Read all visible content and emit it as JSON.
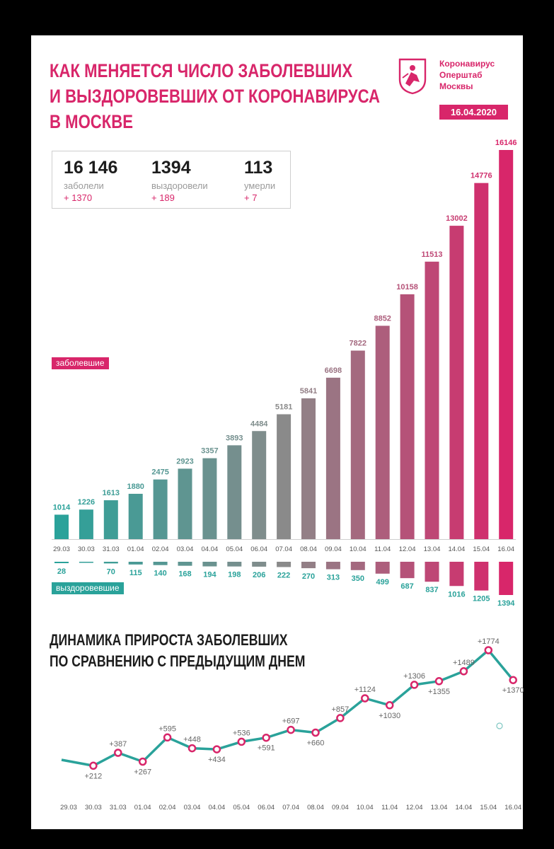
{
  "header": {
    "title_lines": [
      "КАК МЕНЯЕТСЯ ЧИСЛО ЗАБОЛЕВШИХ",
      "И ВЫЗДОРОВЕВШИХ ОТ КОРОНАВИРУСА",
      "В МОСКВЕ"
    ],
    "org_lines": [
      "Коронавирус",
      "Оперштаб",
      "Москвы"
    ],
    "date": "16.04.2020",
    "logo_icon": "moscow-coat-of-arms-icon"
  },
  "stats": [
    {
      "value": "16 146",
      "label": "заболели",
      "delta": "+ 1370"
    },
    {
      "value": "1394",
      "label": "выздоровели",
      "delta": "+ 189"
    },
    {
      "value": "113",
      "label": "умерли",
      "delta": "+ 7"
    }
  ],
  "colors": {
    "accent": "#d8266a",
    "teal": "#2aa29a",
    "gray": "#8a8a8a"
  },
  "chart_data": [
    {
      "type": "bar",
      "categories": [
        "29.03",
        "30.03",
        "31.03",
        "01.04",
        "02.04",
        "03.04",
        "04.04",
        "05.04",
        "06.04",
        "07.04",
        "08.04",
        "09.04",
        "10.04",
        "11.04",
        "12.04",
        "13.04",
        "14.04",
        "15.04",
        "16.04"
      ],
      "series": [
        {
          "name": "заболевшие",
          "values": [
            1014,
            1226,
            1613,
            1880,
            2475,
            2923,
            3357,
            3893,
            4484,
            5181,
            5841,
            6698,
            7822,
            8852,
            10158,
            11513,
            13002,
            14776,
            16146
          ]
        },
        {
          "name": "выздоровевшие",
          "values": [
            28,
            null,
            70,
            115,
            140,
            168,
            194,
            198,
            206,
            222,
            270,
            313,
            350,
            499,
            687,
            837,
            1016,
            1205,
            1394
          ]
        }
      ],
      "ylim": [
        0,
        16146
      ]
    },
    {
      "type": "line",
      "title_lines": [
        "ДИНАМИКА ПРИРОСТА ЗАБОЛЕВШИХ",
        "ПО СРАВНЕНИЮ С ПРЕДЫДУЩИМ ДНЕМ"
      ],
      "x": [
        "29.03",
        "30.03",
        "31.03",
        "01.04",
        "02.04",
        "03.04",
        "04.04",
        "05.04",
        "06.04",
        "07.04",
        "08.04",
        "09.04",
        "10.04",
        "11.04",
        "12.04",
        "13.04",
        "14.04",
        "15.04",
        "16.04"
      ],
      "values": [
        null,
        212,
        387,
        267,
        595,
        448,
        434,
        536,
        591,
        697,
        660,
        857,
        1124,
        1030,
        1306,
        1355,
        1489,
        1774,
        1370
      ],
      "labels": [
        null,
        "+212",
        "+387",
        "+267",
        "+595",
        "+448",
        "+434",
        "+536",
        "+591",
        "+697",
        "+660",
        "+857",
        "+1124",
        "+1030",
        "+1306",
        "+1355",
        "+1489",
        "+1774",
        "+1370"
      ],
      "label_pos": [
        null,
        "below",
        "above",
        "below",
        "above",
        "above",
        "below",
        "above",
        "below",
        "above",
        "below",
        "above",
        "above",
        "below",
        "above",
        "below",
        "above",
        "above",
        "below"
      ],
      "ylim": [
        0,
        1800
      ]
    }
  ]
}
